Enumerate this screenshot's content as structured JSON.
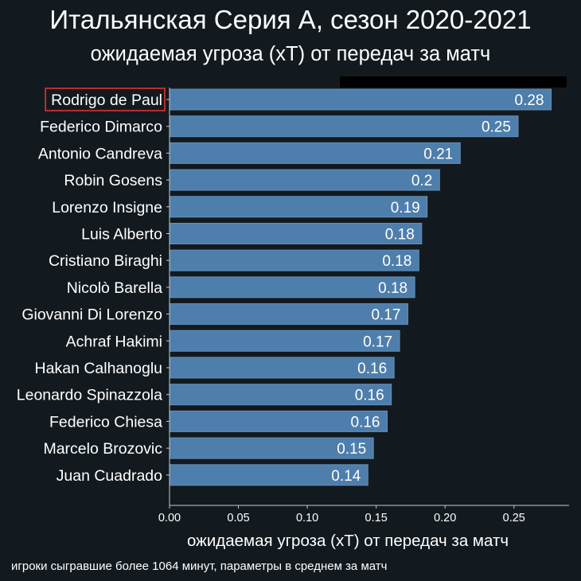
{
  "chart_data": {
    "type": "bar",
    "orientation": "horizontal",
    "title": "Итальянская Серия А, сезон 2020-2021",
    "subtitle": "ожидаемая угроза (xT) от передач за матч",
    "xlabel": "ожидаемая угроза (xT) от передач за матч",
    "ylabel": "",
    "xlim": [
      0,
      0.29
    ],
    "xticks": [
      0,
      0.05,
      0.1,
      0.15,
      0.2,
      0.25
    ],
    "xtick_labels": [
      "0.00",
      "0.05",
      "0.10",
      "0.15",
      "0.20",
      "0.25"
    ],
    "grid": false,
    "categories": [
      "Rodrigo de Paul",
      "Federico Dimarco",
      "Antonio Candreva",
      "Robin Gosens",
      "Lorenzo Insigne",
      "Luis Alberto",
      "Cristiano Biraghi",
      "Nicolò Barella",
      "Giovanni Di Lorenzo",
      "Achraf Hakimi",
      "Hakan Calhanoglu",
      "Leonardo Spinazzola",
      "Federico Chiesa",
      "Marcelo Brozovic",
      "Juan Cuadrado"
    ],
    "values": [
      0.277,
      0.253,
      0.211,
      0.196,
      0.187,
      0.183,
      0.181,
      0.178,
      0.173,
      0.167,
      0.163,
      0.161,
      0.158,
      0.148,
      0.144
    ],
    "data_labels": [
      "0.28",
      "0.25",
      "0.21",
      "0.2",
      "0.19",
      "0.18",
      "0.18",
      "0.18",
      "0.17",
      "0.17",
      "0.16",
      "0.16",
      "0.16",
      "0.15",
      "0.14"
    ],
    "highlighted_index": 0,
    "footnote": "игроки сыгравшие более 1064 минут, параметры в среднем за матч"
  },
  "colors": {
    "background": "#131a1f",
    "text": "#ffffff",
    "bar": "#4e7eab",
    "bar_edge": "#6590b9",
    "axis": "#c8c8c8",
    "highlight": "#e0342f",
    "redaction": "#000000"
  }
}
